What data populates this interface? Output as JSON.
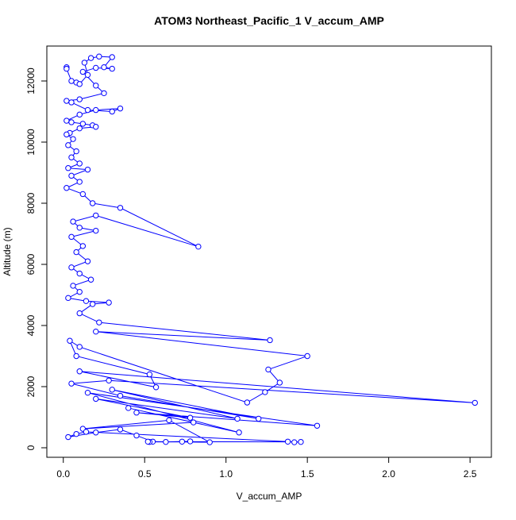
{
  "chart_data": {
    "type": "line",
    "title": "ATOM3 Northeast_Pacific_1 V_accum_AMP",
    "x_label": "V_accum_AMP",
    "y_label": "Altitude (m)",
    "markers": true,
    "color": "#0000ff",
    "xlim": [
      -0.1012,
      2.6312
    ],
    "ylim": [
      -312,
      13143
    ],
    "xticks": [
      {
        "value": 0,
        "label": "0.0"
      },
      {
        "value": 0.5,
        "label": "0.5"
      },
      {
        "value": 1,
        "label": "1.0"
      },
      {
        "value": 1.5,
        "label": "1.5"
      },
      {
        "value": 2,
        "label": "2.0"
      },
      {
        "value": 2.5,
        "label": "2.5"
      }
    ],
    "yticks": [
      0,
      2000,
      4000,
      6000,
      8000,
      10000,
      12000
    ],
    "series": [
      {
        "name": "V_accum_AMP",
        "x": [
          0.02,
          0.02,
          0.05,
          0.08,
          0.1,
          0.15,
          0.13,
          0.17,
          0.22,
          0.3,
          0.25,
          0.3,
          0.2,
          0.12,
          0.2,
          0.25,
          0.1,
          0.02,
          0.05,
          0.15,
          0.3,
          0.35,
          0.2,
          0.1,
          0.02,
          0.05,
          0.12,
          0.18,
          0.2,
          0.1,
          0.04,
          0.02,
          0.06,
          0.03,
          0.08,
          0.05,
          0.1,
          0.03,
          0.15,
          0.05,
          0.1,
          0.02,
          0.12,
          0.18,
          0.35,
          0.83,
          0.2,
          0.06,
          0.1,
          0.2,
          0.05,
          0.12,
          0.08,
          0.15,
          0.05,
          0.1,
          0.17,
          0.06,
          0.1,
          0.03,
          0.14,
          0.28,
          0.18,
          0.1,
          0.22,
          1.27,
          0.2,
          1.5,
          1.26,
          1.33,
          1.24,
          1.13,
          0.1,
          0.04,
          0.08,
          0.53,
          0.57,
          0.1,
          2.53,
          0.28,
          0.05,
          0.35,
          1.2,
          0.3,
          1.07,
          0.2,
          0.78,
          0.45,
          1.56,
          0.15,
          1.08,
          0.4,
          0.8,
          0.12,
          0.65,
          0.9,
          0.55,
          0.45,
          0.35,
          0.2,
          0.03,
          0.08,
          0.14,
          1.38,
          1.42,
          1.46,
          0.73,
          0.78,
          0.63,
          0.53,
          0.52
        ],
        "values": [
          12450,
          12400,
          12000,
          11950,
          11900,
          12200,
          12600,
          12750,
          12800,
          12780,
          12450,
          12400,
          12430,
          12300,
          11850,
          11600,
          11400,
          11350,
          11300,
          11050,
          11000,
          11100,
          11050,
          10900,
          10700,
          10650,
          10600,
          10550,
          10500,
          10450,
          10300,
          10250,
          10100,
          9900,
          9700,
          9500,
          9300,
          9150,
          9100,
          8900,
          8700,
          8500,
          8300,
          8000,
          7850,
          6580,
          7600,
          7400,
          7200,
          7100,
          6900,
          6600,
          6400,
          6100,
          5900,
          5700,
          5500,
          5300,
          5100,
          4900,
          4800,
          4750,
          4700,
          4400,
          4100,
          3520,
          3800,
          3000,
          2560,
          2130,
          1820,
          1480,
          3300,
          3500,
          3000,
          2400,
          1980,
          2500,
          1470,
          2200,
          2100,
          1700,
          950,
          1900,
          950,
          1600,
          980,
          1150,
          720,
          1800,
          500,
          1300,
          830,
          620,
          900,
          180,
          200,
          400,
          600,
          500,
          350,
          450,
          520,
          200,
          180,
          190,
          200,
          210,
          190,
          190,
          200
        ]
      }
    ]
  }
}
